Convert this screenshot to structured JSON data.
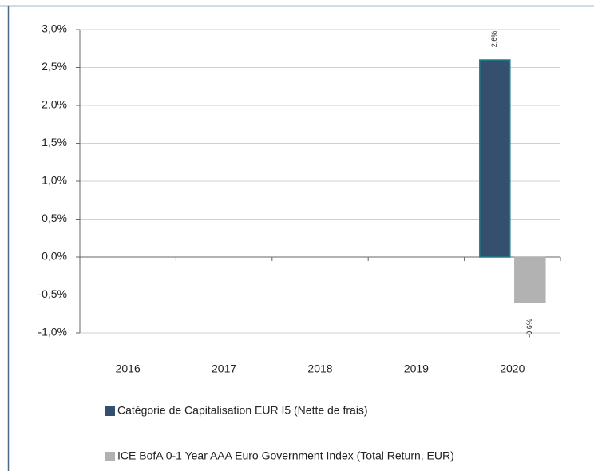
{
  "chart_data": {
    "type": "bar",
    "categories": [
      "2016",
      "2017",
      "2018",
      "2019",
      "2020"
    ],
    "series": [
      {
        "name": "Catégorie de Capitalisation EUR I5 (Nette de frais)",
        "color": "#354f6e",
        "edge": "#1b7f8c",
        "values": [
          null,
          null,
          null,
          null,
          2.6
        ],
        "value_labels": [
          null,
          null,
          null,
          null,
          "2,6%"
        ]
      },
      {
        "name": "ICE BofA 0-1 Year AAA Euro Government Index (Total Return, EUR)",
        "color": "#b2b2b2",
        "edge": "#b2b2b2",
        "values": [
          null,
          null,
          null,
          null,
          -0.6
        ],
        "value_labels": [
          null,
          null,
          null,
          null,
          "-0,6%"
        ]
      }
    ],
    "ylim": [
      -1.0,
      3.0
    ],
    "yticks": [
      {
        "value": -1.0,
        "label": "-1,0%"
      },
      {
        "value": -0.5,
        "label": "-0,5%"
      },
      {
        "value": 0.0,
        "label": "0,0%"
      },
      {
        "value": 0.5,
        "label": "0,5%"
      },
      {
        "value": 1.0,
        "label": "1,0%"
      },
      {
        "value": 1.5,
        "label": "1,5%"
      },
      {
        "value": 2.0,
        "label": "2,0%"
      },
      {
        "value": 2.5,
        "label": "2,5%"
      },
      {
        "value": 3.0,
        "label": "3,0%"
      }
    ],
    "grid": true,
    "legend": "bottom"
  }
}
